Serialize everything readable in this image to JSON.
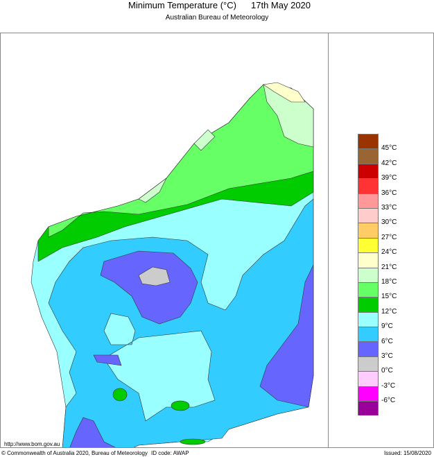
{
  "header": {
    "title": "Minimum Temperature (°C)",
    "date": "17th May 2020",
    "subtitle": "Australian Bureau of Meteorology"
  },
  "legend": {
    "colors": [
      "#993300",
      "#996633",
      "#cc0000",
      "#ff3333",
      "#ff9999",
      "#ffcccc",
      "#ffcc66",
      "#ffff33",
      "#ffffcc",
      "#ccffcc",
      "#66ff66",
      "#00cc00",
      "#99ffff",
      "#33ccff",
      "#6666ff",
      "#cccccc",
      "#ffccff",
      "#ff00ff",
      "#990099"
    ],
    "labels": [
      "45°C",
      "42°C",
      "39°C",
      "36°C",
      "33°C",
      "30°C",
      "27°C",
      "24°C",
      "21°C",
      "18°C",
      "15°C",
      "12°C",
      "9°C",
      "6°C",
      "3°C",
      "0°C",
      "-3°C",
      "-6°C"
    ]
  },
  "footer": {
    "url": "http://www.bom.gov.au",
    "copyright": "© Commonwealth of Australia 2020, Bureau of Meteorology",
    "id_code": "ID code: AWAP",
    "issued": "Issued: 15/08/2020"
  }
}
